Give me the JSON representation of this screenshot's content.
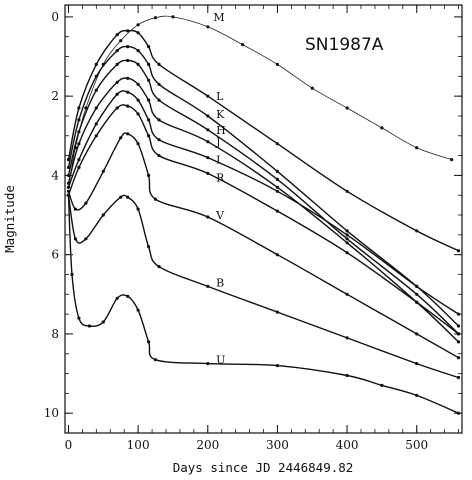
{
  "chart_data": {
    "type": "line",
    "title": "SN1987A",
    "xlabel": "Days since JD 2446849.82",
    "ylabel": "Magnitude",
    "xlim": [
      -5,
      565
    ],
    "ylim": [
      10.5,
      -0.3
    ],
    "y_inverted": true,
    "grid": false,
    "x_ticks": [
      0,
      100,
      200,
      300,
      400,
      500
    ],
    "y_ticks": [
      0,
      2,
      4,
      6,
      8,
      10
    ],
    "series": [
      {
        "name": "M",
        "label_at": [
          208,
          0.0
        ],
        "x": [
          0,
          10,
          25,
          50,
          75,
          100,
          125,
          150,
          200,
          250,
          300,
          350,
          400,
          450,
          500,
          550
        ],
        "y": [
          4.3,
          3.3,
          2.3,
          1.2,
          0.6,
          0.2,
          0.02,
          0.0,
          0.25,
          0.7,
          1.2,
          1.8,
          2.3,
          2.8,
          3.3,
          3.6
        ]
      },
      {
        "name": "L",
        "label_at": [
          212,
          2.0
        ],
        "x": [
          0,
          15,
          40,
          70,
          85,
          100,
          115,
          130,
          200,
          300,
          400,
          500,
          560
        ],
        "y": [
          3.6,
          2.3,
          1.2,
          0.45,
          0.35,
          0.4,
          0.75,
          1.2,
          2.0,
          3.2,
          4.4,
          5.4,
          5.9
        ]
      },
      {
        "name": "K",
        "label_at": [
          212,
          2.45
        ],
        "x": [
          0,
          15,
          40,
          70,
          85,
          100,
          115,
          130,
          200,
          300,
          400,
          500,
          560
        ],
        "y": [
          3.8,
          2.6,
          1.5,
          0.85,
          0.75,
          0.85,
          1.2,
          1.7,
          2.5,
          3.9,
          5.4,
          6.8,
          7.8
        ]
      },
      {
        "name": "H",
        "label_at": [
          212,
          2.85
        ],
        "x": [
          0,
          15,
          40,
          70,
          85,
          100,
          115,
          130,
          200,
          300,
          400,
          500,
          560
        ],
        "y": [
          4.0,
          2.9,
          1.85,
          1.2,
          1.1,
          1.2,
          1.6,
          2.1,
          2.85,
          4.1,
          5.6,
          7.0,
          8.0
        ]
      },
      {
        "name": "J",
        "label_at": [
          212,
          3.15
        ],
        "x": [
          0,
          15,
          40,
          70,
          85,
          100,
          115,
          130,
          200,
          300,
          400,
          500,
          560
        ],
        "y": [
          4.2,
          3.2,
          2.3,
          1.65,
          1.55,
          1.7,
          2.1,
          2.6,
          3.15,
          4.3,
          5.7,
          7.2,
          8.2
        ]
      },
      {
        "name": "I",
        "label_at": [
          212,
          3.6
        ],
        "x": [
          0,
          15,
          40,
          70,
          85,
          100,
          115,
          130,
          200,
          300,
          400,
          500,
          560
        ],
        "y": [
          4.3,
          3.6,
          2.7,
          1.95,
          1.9,
          2.1,
          2.6,
          3.1,
          3.55,
          4.4,
          5.5,
          6.8,
          7.5
        ]
      },
      {
        "name": "R",
        "label_at": [
          212,
          4.05
        ],
        "x": [
          0,
          15,
          40,
          70,
          85,
          100,
          115,
          130,
          200,
          300,
          400,
          500,
          560
        ],
        "y": [
          4.5,
          3.8,
          3.0,
          2.3,
          2.25,
          2.45,
          3.0,
          3.5,
          3.95,
          4.9,
          5.95,
          7.2,
          8.0
        ]
      },
      {
        "name": "V",
        "label_at": [
          212,
          5.0
        ],
        "x": [
          0,
          10,
          25,
          50,
          75,
          85,
          100,
          115,
          125,
          200,
          300,
          400,
          500,
          560
        ],
        "y": [
          4.4,
          4.85,
          4.7,
          3.9,
          3.05,
          2.95,
          3.2,
          4.0,
          4.6,
          5.05,
          6.0,
          7.0,
          8.0,
          8.6
        ]
      },
      {
        "name": "B",
        "label_at": [
          212,
          6.7
        ],
        "x": [
          0,
          10,
          25,
          50,
          75,
          85,
          100,
          115,
          130,
          200,
          300,
          400,
          500,
          560
        ],
        "y": [
          4.5,
          5.6,
          5.6,
          5.0,
          4.55,
          4.55,
          4.85,
          5.8,
          6.3,
          6.8,
          7.45,
          8.1,
          8.75,
          9.1
        ]
      },
      {
        "name": "U",
        "label_at": [
          212,
          8.65
        ],
        "x": [
          0,
          5,
          15,
          30,
          50,
          70,
          85,
          100,
          115,
          125,
          200,
          300,
          400,
          450,
          500,
          560
        ],
        "y": [
          4.5,
          6.5,
          7.6,
          7.8,
          7.7,
          7.1,
          7.05,
          7.4,
          8.2,
          8.65,
          8.75,
          8.8,
          9.05,
          9.3,
          9.55,
          10.0
        ]
      }
    ]
  }
}
